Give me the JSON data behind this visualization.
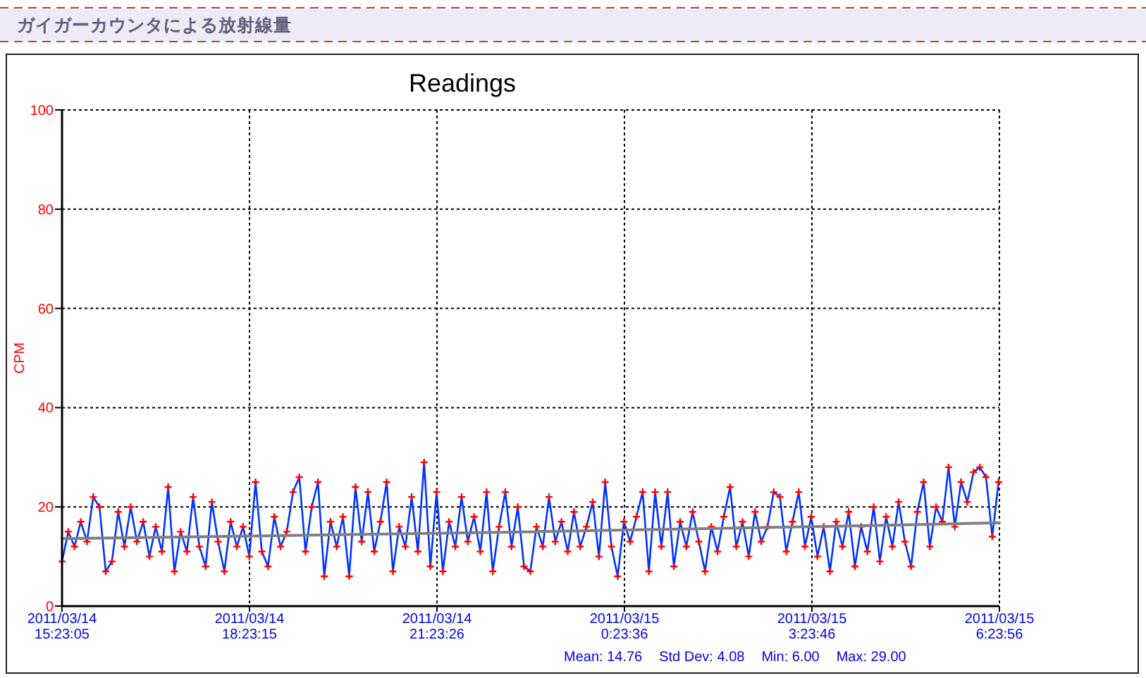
{
  "chart_data": {
    "type": "line",
    "title": "ガイガーカウンタによる放射線量",
    "subtitle": "Readings",
    "ylabel": "CPM",
    "xlim": [
      "2011-03-14T15:23:05",
      "2011-03-15T06:23:56"
    ],
    "xticks": [
      {
        "value": "2011-03-14T15:23:05",
        "label": "2011/03/14\n15:23:05"
      },
      {
        "value": "2011-03-14T18:23:15",
        "label": "2011/03/14\n18:23:15"
      },
      {
        "value": "2011-03-14T21:23:26",
        "label": "2011/03/14\n21:23:26"
      },
      {
        "value": "2011-03-15T00:23:36",
        "label": "2011/03/15\n0:23:36"
      },
      {
        "value": "2011-03-15T03:23:46",
        "label": "2011/03/15\n3:23:46"
      },
      {
        "value": "2011-03-15T06:23:56",
        "label": "2011/03/15\n6:23:56"
      }
    ],
    "ylim": [
      0,
      100
    ],
    "yticks": [
      0,
      20,
      40,
      60,
      80,
      100
    ],
    "grid": true,
    "x": [
      "2011-03-14T15:23:05",
      "2011-03-14T15:29:05",
      "2011-03-14T15:35:05",
      "2011-03-14T15:41:05",
      "2011-03-14T15:47:05",
      "2011-03-14T15:53:05",
      "2011-03-14T15:59:05",
      "2011-03-14T16:05:05",
      "2011-03-14T16:11:05",
      "2011-03-14T16:17:05",
      "2011-03-14T16:23:05",
      "2011-03-14T16:29:05",
      "2011-03-14T16:35:05",
      "2011-03-14T16:41:05",
      "2011-03-14T16:47:05",
      "2011-03-14T16:53:05",
      "2011-03-14T16:59:05",
      "2011-03-14T17:05:05",
      "2011-03-14T17:11:05",
      "2011-03-14T17:17:05",
      "2011-03-14T17:23:05",
      "2011-03-14T17:29:05",
      "2011-03-14T17:35:05",
      "2011-03-14T17:41:05",
      "2011-03-14T17:47:05",
      "2011-03-14T17:53:05",
      "2011-03-14T17:59:05",
      "2011-03-14T18:05:05",
      "2011-03-14T18:11:05",
      "2011-03-14T18:17:05",
      "2011-03-14T18:23:05",
      "2011-03-14T18:29:05",
      "2011-03-14T18:35:05",
      "2011-03-14T18:41:05",
      "2011-03-14T18:47:05",
      "2011-03-14T18:53:05",
      "2011-03-14T18:59:05",
      "2011-03-14T19:05:05",
      "2011-03-14T19:11:05",
      "2011-03-14T19:17:05",
      "2011-03-14T19:23:05",
      "2011-03-14T19:29:05",
      "2011-03-14T19:35:05",
      "2011-03-14T19:41:05",
      "2011-03-14T19:47:05",
      "2011-03-14T19:53:05",
      "2011-03-14T19:59:05",
      "2011-03-14T20:05:05",
      "2011-03-14T20:11:05",
      "2011-03-14T20:17:05",
      "2011-03-14T20:23:05",
      "2011-03-14T20:29:05",
      "2011-03-14T20:35:05",
      "2011-03-14T20:41:05",
      "2011-03-14T20:47:05",
      "2011-03-14T20:53:05",
      "2011-03-14T20:59:05",
      "2011-03-14T21:05:05",
      "2011-03-14T21:11:05",
      "2011-03-14T21:17:05",
      "2011-03-14T21:23:05",
      "2011-03-14T21:29:05",
      "2011-03-14T21:35:05",
      "2011-03-14T21:41:05",
      "2011-03-14T21:47:05",
      "2011-03-14T21:53:05",
      "2011-03-14T21:59:05",
      "2011-03-14T22:05:05",
      "2011-03-14T22:11:05",
      "2011-03-14T22:17:05",
      "2011-03-14T22:23:05",
      "2011-03-14T22:29:05",
      "2011-03-14T22:35:05",
      "2011-03-14T22:41:05",
      "2011-03-14T22:47:05",
      "2011-03-14T22:53:05",
      "2011-03-14T22:59:05",
      "2011-03-14T23:05:05",
      "2011-03-14T23:11:05",
      "2011-03-14T23:17:05",
      "2011-03-14T23:23:05",
      "2011-03-14T23:29:05",
      "2011-03-14T23:35:05",
      "2011-03-14T23:41:05",
      "2011-03-14T23:47:05",
      "2011-03-14T23:53:05",
      "2011-03-14T23:59:05",
      "2011-03-15T00:05:05",
      "2011-03-15T00:11:05",
      "2011-03-15T00:17:05",
      "2011-03-15T00:23:05",
      "2011-03-15T00:29:05",
      "2011-03-15T00:35:05",
      "2011-03-15T00:41:05",
      "2011-03-15T00:47:05",
      "2011-03-15T00:53:05",
      "2011-03-15T00:59:05",
      "2011-03-15T01:05:05",
      "2011-03-15T01:11:05",
      "2011-03-15T01:17:05",
      "2011-03-15T01:23:05",
      "2011-03-15T01:29:05",
      "2011-03-15T01:35:05",
      "2011-03-15T01:41:05",
      "2011-03-15T01:47:05",
      "2011-03-15T01:53:05",
      "2011-03-15T01:59:05",
      "2011-03-15T02:05:05",
      "2011-03-15T02:11:05",
      "2011-03-15T02:17:05",
      "2011-03-15T02:23:05",
      "2011-03-15T02:29:05",
      "2011-03-15T02:35:05",
      "2011-03-15T02:41:05",
      "2011-03-15T02:47:05",
      "2011-03-15T02:53:05",
      "2011-03-15T02:59:05",
      "2011-03-15T03:05:05",
      "2011-03-15T03:11:05",
      "2011-03-15T03:17:05",
      "2011-03-15T03:23:05",
      "2011-03-15T03:29:05",
      "2011-03-15T03:35:05",
      "2011-03-15T03:41:05",
      "2011-03-15T03:47:05",
      "2011-03-15T03:53:05",
      "2011-03-15T03:59:05",
      "2011-03-15T04:05:05",
      "2011-03-15T04:11:05",
      "2011-03-15T04:17:05",
      "2011-03-15T04:23:05",
      "2011-03-15T04:29:05",
      "2011-03-15T04:35:05",
      "2011-03-15T04:41:05",
      "2011-03-15T04:47:05",
      "2011-03-15T04:53:05",
      "2011-03-15T04:59:05",
      "2011-03-15T05:05:05",
      "2011-03-15T05:11:05",
      "2011-03-15T05:17:05",
      "2011-03-15T05:23:05",
      "2011-03-15T05:29:05",
      "2011-03-15T05:35:05",
      "2011-03-15T05:41:05",
      "2011-03-15T05:47:05",
      "2011-03-15T05:53:05",
      "2011-03-15T05:59:05",
      "2011-03-15T06:05:05",
      "2011-03-15T06:11:05",
      "2011-03-15T06:17:05",
      "2011-03-15T06:23:05"
    ],
    "series": [
      {
        "color": "#0033ff",
        "marker": "cross",
        "values": [
          9,
          15,
          12,
          17,
          13,
          22,
          20,
          7,
          9,
          19,
          12,
          20,
          13,
          17,
          10,
          16,
          11,
          24,
          7,
          15,
          11,
          22,
          12,
          8,
          21,
          13,
          7,
          17,
          12,
          16,
          10,
          25,
          11,
          8,
          18,
          12,
          15,
          23,
          26,
          11,
          20,
          25,
          6,
          17,
          12,
          18,
          6,
          24,
          13,
          23,
          11,
          17,
          25,
          7,
          16,
          12,
          22,
          11,
          29,
          8,
          23,
          7,
          17,
          12,
          22,
          13,
          18,
          11,
          23,
          7,
          16,
          23,
          12,
          20,
          8,
          7,
          16,
          12,
          22,
          13,
          17,
          11,
          19,
          12,
          16,
          21,
          10,
          25,
          12,
          6,
          17,
          13,
          18,
          23,
          7,
          23,
          12,
          23,
          8,
          17,
          12,
          19,
          13,
          7,
          16,
          11,
          18,
          24,
          12,
          17,
          10,
          19,
          13,
          16,
          23,
          22,
          11,
          17,
          23,
          12,
          18,
          10,
          16,
          7,
          17,
          12,
          19,
          8,
          16,
          11,
          20,
          9,
          18,
          12,
          21,
          13,
          8,
          19,
          25,
          12,
          20,
          17,
          28,
          16,
          25,
          21,
          27,
          28,
          26,
          14,
          25
        ],
        "colors": [
          "#ff0000",
          "#ff0000",
          "#ff0000",
          "#ff0000",
          "#ff0000",
          "#ff0000",
          "#ff0000",
          "#ff0000",
          "#ff0000",
          "#ff0000",
          "#ff0000",
          "#ff0000",
          "#ff0000",
          "#ff0000",
          "#ff0000",
          "#ff0000",
          "#ff0000",
          "#ff0000",
          "#ff0000",
          "#ff0000",
          "#ff0000",
          "#ff0000",
          "#ff0000",
          "#ff0000",
          "#ff0000",
          "#ff0000",
          "#ff0000",
          "#ff0000",
          "#ff0000",
          "#ff0000",
          "#ff0000",
          "#ff0000",
          "#ff0000",
          "#ff0000",
          "#ff0000",
          "#ff0000",
          "#ff0000",
          "#ff0000",
          "#ff0000",
          "#ff0000",
          "#ff0000",
          "#ff0000",
          "#ff0000",
          "#ff0000",
          "#ff0000",
          "#ff0000",
          "#ff0000",
          "#ff0000",
          "#ff0000",
          "#ff0000",
          "#ff0000",
          "#ff0000",
          "#ff0000",
          "#ff0000",
          "#ff0000",
          "#ff0000",
          "#ff0000",
          "#ff0000",
          "#ff0000",
          "#ff0000",
          "#ff0000",
          "#ff0000",
          "#ff0000",
          "#ff0000",
          "#ff0000",
          "#ff0000",
          "#ff0000",
          "#ff0000",
          "#ff0000",
          "#ff0000",
          "#ff0000",
          "#ff0000",
          "#ff0000",
          "#ff0000",
          "#ff0000",
          "#ff0000",
          "#ff0000",
          "#ff0000",
          "#ff0000",
          "#ff0000",
          "#ff0000",
          "#ff0000",
          "#ff0000",
          "#ff0000",
          "#ff0000",
          "#ff0000",
          "#ff0000",
          "#ff0000",
          "#ff0000",
          "#ff0000",
          "#ff0000",
          "#ff0000",
          "#ff0000",
          "#ff0000",
          "#ff0000",
          "#ff0000",
          "#ff0000",
          "#ff0000",
          "#ff0000",
          "#ff0000",
          "#ff0000",
          "#ff0000",
          "#ff0000",
          "#ff0000",
          "#ff0000",
          "#ff0000",
          "#ff0000",
          "#ff0000",
          "#ff0000",
          "#ff0000",
          "#ff0000",
          "#ff0000",
          "#ff0000",
          "#ff0000",
          "#ff0000",
          "#ff0000",
          "#ff0000",
          "#ff0000",
          "#ff0000",
          "#ff0000",
          "#ff0000",
          "#ff0000",
          "#ff0000",
          "#ff0000",
          "#ff0000",
          "#ff0000",
          "#ff0000",
          "#ff0000",
          "#ff0000",
          "#ff0000",
          "#ff0000",
          "#ff0000",
          "#ff0000",
          "#ff0000",
          "#ff0000",
          "#ff0000",
          "#ff0000",
          "#ff0000",
          "#ff0000",
          "#ff0000",
          "#ff0000",
          "#ff0000",
          "#ff0000",
          "#ff0000",
          "#ff0000",
          "#ff0000",
          "#ff0000",
          "#ff0000",
          "#ff0000",
          "#ff0000",
          "#ff0000"
        ]
      },
      {
        "color": "#808080",
        "x": [
          "2011-03-14T15:23:05",
          "2011-03-14T18:18:15",
          "2011-03-14T22:58:15",
          "2011-03-15T03:23:46",
          "2011-03-15T05:22:02",
          "2011-03-15T06:23:56"
        ],
        "values": [
          13.6,
          14.1,
          15.0,
          16.0,
          16.5,
          16.8
        ]
      }
    ],
    "annotations": [
      "Mean: 14.76",
      "Std Dev: 4.08",
      "Min: 6.00",
      "Max: 29.00"
    ]
  }
}
